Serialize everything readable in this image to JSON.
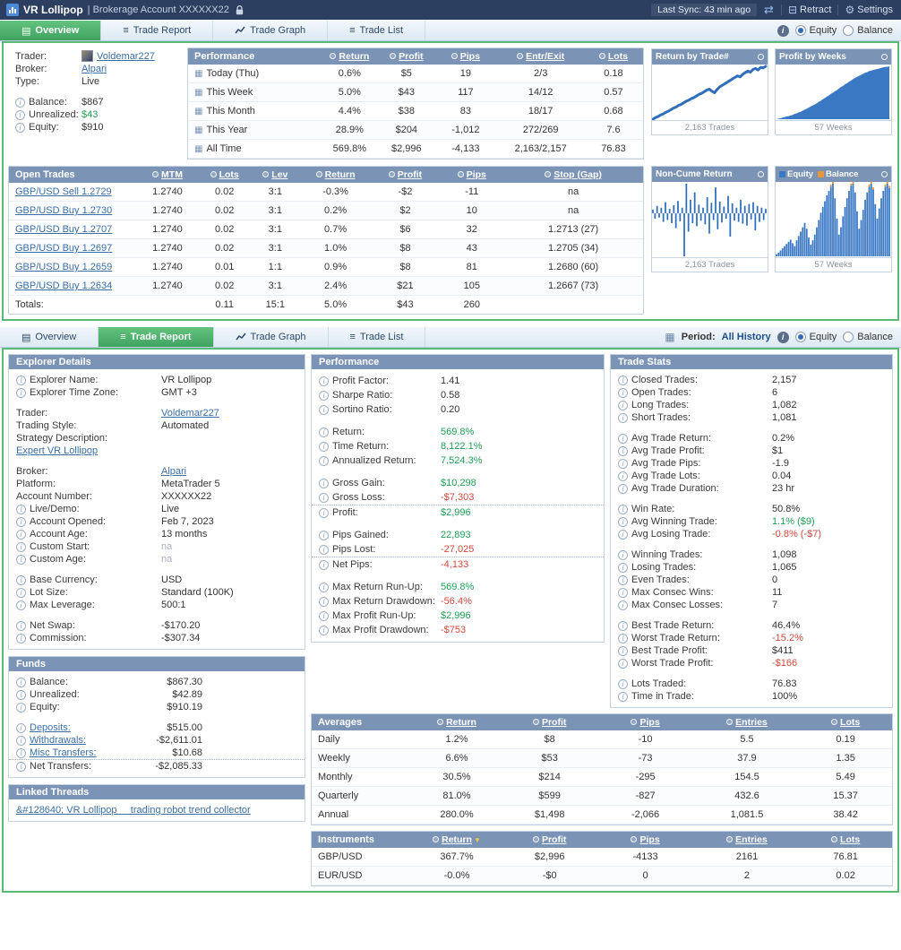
{
  "colors": {
    "pos": "#1f9e55",
    "neg": "#d2493b",
    "link": "#3a6ea5",
    "header": "#7b94b6",
    "accent_green": "#58ba74",
    "chart_blue": "#2f6fba",
    "balance_orange": "#e8963c"
  },
  "icons": {
    "info": "i",
    "help": "i",
    "calendar": "▦",
    "swap": "⇄",
    "retract": "⊟",
    "gear": "⚙",
    "sort_down": "▼",
    "tab_overview": "▤",
    "tab_lines": "≡",
    "chart_dot": ""
  },
  "titlebar": {
    "title": "VR Lollipop",
    "subtitle": "| Brokerage Account XXXXXX22",
    "last_sync": "Last Sync: 43 min ago",
    "retract_label": "Retract",
    "settings_label": "Settings"
  },
  "radio_labels": {
    "equity": "Equity",
    "balance": "Balance"
  },
  "overview_tabs": {
    "tabs": [
      {
        "label": "Overview",
        "icon": "overview",
        "active": true
      },
      {
        "label": "Trade Report",
        "icon": "report",
        "active": false
      },
      {
        "label": "Trade Graph",
        "icon": "graph",
        "active": false
      },
      {
        "label": "Trade List",
        "icon": "list",
        "active": false
      }
    ]
  },
  "report_tabs": {
    "tabs": [
      {
        "label": "Overview",
        "icon": "overview",
        "active": false
      },
      {
        "label": "Trade Report",
        "icon": "report",
        "active": true
      },
      {
        "label": "Trade Graph",
        "icon": "graph",
        "active": false
      },
      {
        "label": "Trade List",
        "icon": "list",
        "active": false
      }
    ],
    "period_label": "Period:",
    "period_value": "All History"
  },
  "trader_panel": {
    "rows": [
      {
        "label": "Trader:",
        "value": "Voldemar227",
        "link": true,
        "avatar": true
      },
      {
        "label": "Broker:",
        "value": "Alpari",
        "link": true
      },
      {
        "label": "Type:",
        "value": "Live"
      },
      {
        "label": "Balance:",
        "value": "$867",
        "info": true,
        "gap": true
      },
      {
        "label": "Unrealized:",
        "value": "$43",
        "info": true,
        "color": "pos"
      },
      {
        "label": "Equity:",
        "value": "$910",
        "info": true
      }
    ]
  },
  "performance_table": {
    "title": "Performance",
    "headers": [
      "Return",
      "Profit",
      "Pips",
      "Entr/Exit",
      "Lots"
    ],
    "col_types": [
      "posneg",
      "posneg",
      "posneg",
      "plain",
      "plain"
    ],
    "rows": [
      {
        "label": "Today (Thu)",
        "cells": [
          "0.6%",
          "$5",
          "19",
          "2/3",
          "0.18"
        ]
      },
      {
        "label": "This Week",
        "cells": [
          "5.0%",
          "$43",
          "117",
          "14/12",
          "0.57"
        ]
      },
      {
        "label": "This Month",
        "cells": [
          "4.4%",
          "$38",
          "83",
          "18/17",
          "0.68"
        ]
      },
      {
        "label": "This Year",
        "cells": [
          "28.9%",
          "$204",
          "-1,012",
          "272/269",
          "7.6"
        ]
      },
      {
        "label": "All Time",
        "cells": [
          "569.8%",
          "$2,996",
          "-4,133",
          "2,163/2,157",
          "76.83"
        ]
      }
    ]
  },
  "open_trades_table": {
    "title": "Open Trades",
    "headers": [
      "MTM",
      "Lots",
      "Lev",
      "Return",
      "Profit",
      "Pips",
      "Stop (Gap)"
    ],
    "col_types": [
      "plain",
      "plain",
      "plain",
      "posneg",
      "posneg",
      "posneg",
      "stop"
    ],
    "rows": [
      {
        "label": "GBP/USD Sell 1.2729",
        "link": true,
        "cells": [
          "1.2740",
          "0.02",
          "3:1",
          "-0.3%",
          "-$2",
          "-11",
          "na"
        ]
      },
      {
        "label": "GBP/USD Buy 1.2730",
        "link": true,
        "cells": [
          "1.2740",
          "0.02",
          "3:1",
          "0.2%",
          "$2",
          "10",
          "na"
        ]
      },
      {
        "label": "GBP/USD Buy 1.2707",
        "link": true,
        "cells": [
          "1.2740",
          "0.02",
          "3:1",
          "0.7%",
          "$6",
          "32",
          "1.2713 (27)"
        ]
      },
      {
        "label": "GBP/USD Buy 1.2697",
        "link": true,
        "cells": [
          "1.2740",
          "0.02",
          "3:1",
          "1.0%",
          "$8",
          "43",
          "1.2705 (34)"
        ]
      },
      {
        "label": "GBP/USD Buy 1.2659",
        "link": true,
        "cells": [
          "1.2740",
          "0.01",
          "1:1",
          "0.9%",
          "$8",
          "81",
          "1.2680 (60)"
        ]
      },
      {
        "label": "GBP/USD Buy 1.2634",
        "link": true,
        "cells": [
          "1.2740",
          "0.02",
          "3:1",
          "2.4%",
          "$21",
          "105",
          "1.2667 (73)"
        ]
      }
    ],
    "totals": {
      "label": "Totals:",
      "cells": [
        "",
        "0.11",
        "15:1",
        "5.0%",
        "$43",
        "260",
        ""
      ]
    }
  },
  "charts": [
    {
      "title": "Return by Trade#",
      "caption": "2,163 Trades",
      "type": "line",
      "color": "#2f6fba",
      "values": [
        0,
        3,
        5,
        8,
        10,
        13,
        15,
        18,
        21,
        23,
        26,
        28,
        31,
        34,
        36,
        39,
        41,
        44,
        47,
        49,
        52,
        55,
        57,
        53,
        50,
        56,
        61,
        64,
        67,
        70,
        73,
        76,
        79,
        82,
        80,
        85,
        88,
        91,
        89,
        94,
        96,
        93,
        98,
        97,
        100
      ]
    },
    {
      "title": "Profit by Weeks",
      "caption": "57 Weeks",
      "type": "area",
      "color": "#3a78c4",
      "values": [
        0,
        1,
        2,
        3,
        4,
        5,
        6,
        7,
        8,
        10,
        11,
        13,
        14,
        16,
        18,
        20,
        22,
        24,
        26,
        28,
        30,
        33,
        35,
        38,
        40,
        43,
        45,
        48,
        50,
        53,
        55,
        58,
        61,
        63,
        66,
        68,
        71,
        73,
        76,
        78,
        80,
        82,
        84,
        86,
        88,
        89,
        91,
        92,
        93,
        94,
        95,
        96,
        97,
        98,
        99,
        99,
        100
      ]
    },
    {
      "title": "Non-Cume Return",
      "caption": "2,163 Trades",
      "type": "midbars",
      "color": "#2f6fba",
      "values": [
        6,
        -9,
        12,
        -7,
        9,
        -14,
        18,
        -11,
        7,
        -16,
        13,
        -24,
        20,
        -13,
        9,
        -70,
        48,
        -30,
        22,
        -16,
        34,
        -21,
        14,
        -12,
        9,
        -18,
        26,
        -33,
        17,
        -11,
        42,
        -26,
        19,
        -15,
        11,
        -9,
        28,
        -38,
        16,
        -12,
        9,
        -14,
        22,
        -17,
        12,
        -20,
        15,
        -10,
        18,
        -28,
        12,
        -14,
        9,
        -11,
        7
      ]
    },
    {
      "legend": [
        {
          "label": "Equity",
          "color": "#3a78c4"
        },
        {
          "label": "Balance",
          "color": "#e8963c"
        }
      ],
      "caption": "57 Weeks",
      "type": "bars",
      "color": "#3a78c4",
      "overlay_color": "#e8963c",
      "overlay_min": 92,
      "values": [
        3,
        5,
        8,
        11,
        14,
        17,
        20,
        23,
        18,
        14,
        22,
        28,
        34,
        40,
        46,
        38,
        26,
        16,
        22,
        30,
        40,
        50,
        60,
        68,
        76,
        84,
        90,
        96,
        100,
        80,
        52,
        30,
        40,
        55,
        68,
        80,
        90,
        97,
        100,
        88,
        62,
        38,
        50,
        64,
        78,
        88,
        96,
        100,
        92,
        72,
        52,
        66,
        80,
        90,
        96,
        100,
        94
      ]
    }
  ],
  "explorer_details": {
    "title": "Explorer Details",
    "rows": [
      {
        "label": "Explorer Name:",
        "value": "VR Lollipop",
        "info": true
      },
      {
        "label": "Explorer Time Zone:",
        "value": "GMT +3",
        "info": true
      },
      {
        "label": "Trader:",
        "value": "Voldemar227",
        "link": true,
        "gap": true
      },
      {
        "label": "Trading Style:",
        "value": "Automated"
      },
      {
        "label": "Strategy Description:",
        "value": ""
      },
      {
        "label": "Expert VR Lollipop",
        "value": "",
        "label_link": true
      },
      {
        "label": "Broker:",
        "value": "Alpari",
        "link": true,
        "gap": true
      },
      {
        "label": "Platform:",
        "value": "MetaTrader 5"
      },
      {
        "label": "Account Number:",
        "value": "XXXXXX22"
      },
      {
        "label": "Live/Demo:",
        "value": "Live",
        "info": true
      },
      {
        "label": "Account Opened:",
        "value": "Feb 7, 2023",
        "info": true
      },
      {
        "label": "Account Age:",
        "value": "13 months",
        "info": true
      },
      {
        "label": "Custom Start:",
        "value": "na",
        "info": true,
        "muted": true
      },
      {
        "label": "Custom Age:",
        "value": "na",
        "info": true,
        "muted": true
      },
      {
        "label": "Base Currency:",
        "value": "USD",
        "info": true,
        "gap": true
      },
      {
        "label": "Lot Size:",
        "value": "Standard (100K)",
        "info": true
      },
      {
        "label": "Max Leverage:",
        "value": "500:1",
        "info": true
      },
      {
        "label": "Net Swap:",
        "value": "-$170.20",
        "info": true,
        "gap": true
      },
      {
        "label": "Commission:",
        "value": "-$307.34",
        "info": true
      }
    ]
  },
  "performance_panel": {
    "title": "Performance",
    "rows": [
      {
        "label": "Profit Factor:",
        "value": "1.41",
        "info": true
      },
      {
        "label": "Sharpe Ratio:",
        "value": "0.58",
        "info": true
      },
      {
        "label": "Sortino Ratio:",
        "value": "0.20",
        "info": true
      },
      {
        "label": "Return:",
        "value": "569.8%",
        "info": true,
        "gap": true,
        "color": "pos"
      },
      {
        "label": "Time Return:",
        "value": "8,122.1%",
        "info": true,
        "color": "pos"
      },
      {
        "label": "Annualized Return:",
        "value": "7,524.3%",
        "info": true,
        "color": "pos"
      },
      {
        "label": "Gross Gain:",
        "value": "$10,298",
        "info": true,
        "gap": true,
        "color": "pos"
      },
      {
        "label": "Gross Loss:",
        "value": "-$7,303",
        "info": true,
        "color": "neg",
        "rule": true
      },
      {
        "label": "Profit:",
        "value": "$2,996",
        "info": true,
        "color": "pos"
      },
      {
        "label": "Pips Gained:",
        "value": "22,893",
        "info": true,
        "gap": true,
        "color": "pos"
      },
      {
        "label": "Pips Lost:",
        "value": "-27,025",
        "info": true,
        "color": "neg",
        "rule": true
      },
      {
        "label": "Net Pips:",
        "value": "-4,133",
        "info": true,
        "color": "neg"
      },
      {
        "label": "Max Return Run-Up:",
        "value": "569.8%",
        "info": true,
        "gap": true,
        "color": "pos"
      },
      {
        "label": "Max Return Drawdown:",
        "value": "-56.4%",
        "info": true,
        "color": "neg"
      },
      {
        "label": "Max Profit Run-Up:",
        "value": "$2,996",
        "info": true,
        "color": "pos"
      },
      {
        "label": "Max Profit Drawdown:",
        "value": "-$753",
        "info": true,
        "color": "neg"
      }
    ]
  },
  "trade_stats": {
    "title": "Trade Stats",
    "rows": [
      {
        "label": "Closed Trades:",
        "value": "2,157",
        "info": true
      },
      {
        "label": "Open Trades:",
        "value": "6",
        "info": true
      },
      {
        "label": "Long Trades:",
        "value": "1,082",
        "info": true
      },
      {
        "label": "Short Trades:",
        "value": "1,081",
        "info": true
      },
      {
        "label": "Avg Trade Return:",
        "value": "0.2%",
        "info": true,
        "gap": true
      },
      {
        "label": "Avg Trade Profit:",
        "value": "$1",
        "info": true
      },
      {
        "label": "Avg Trade Pips:",
        "value": "-1.9",
        "info": true
      },
      {
        "label": "Avg Trade Lots:",
        "value": "0.04",
        "info": true
      },
      {
        "label": "Avg Trade Duration:",
        "value": "23 hr",
        "info": true
      },
      {
        "label": "Win Rate:",
        "value": "50.8%",
        "info": true,
        "gap": true
      },
      {
        "label": "Avg Winning Trade:",
        "value": "1.1% ($9)",
        "info": true,
        "color": "pos"
      },
      {
        "label": "Avg Losing Trade:",
        "value": "-0.8% (-$7)",
        "info": true,
        "color": "neg"
      },
      {
        "label": "Winning Trades:",
        "value": "1,098",
        "info": true,
        "gap": true
      },
      {
        "label": "Losing Trades:",
        "value": "1,065",
        "info": true
      },
      {
        "label": "Even Trades:",
        "value": "0",
        "info": true
      },
      {
        "label": "Max Consec Wins:",
        "value": "11",
        "info": true
      },
      {
        "label": "Max Consec Losses:",
        "value": "7",
        "info": true
      },
      {
        "label": "Best Trade Return:",
        "value": "46.4%",
        "info": true,
        "gap": true
      },
      {
        "label": "Worst Trade Return:",
        "value": "-15.2%",
        "info": true,
        "color": "neg"
      },
      {
        "label": "Best Trade Profit:",
        "value": "$411",
        "info": true
      },
      {
        "label": "Worst Trade Profit:",
        "value": "-$166",
        "info": true,
        "color": "neg"
      },
      {
        "label": "Lots Traded:",
        "value": "76.83",
        "info": true,
        "gap": true
      },
      {
        "label": "Time in Trade:",
        "value": "100%",
        "info": true
      }
    ]
  },
  "funds": {
    "title": "Funds",
    "rows": [
      {
        "label": "Balance:",
        "value": "$867.30",
        "info": true
      },
      {
        "label": "Unrealized:",
        "value": "$42.89",
        "info": true
      },
      {
        "label": "Equity:",
        "value": "$910.19",
        "info": true
      },
      {
        "label": "Deposits:",
        "value": "$515.00",
        "info": true,
        "link": false,
        "label_is_link": true,
        "gap": true
      },
      {
        "label": "Withdrawals:",
        "value": "-$2,611.01",
        "info": true,
        "label_is_link": true
      },
      {
        "label": "Misc Transfers:",
        "value": "$10.68",
        "info": true,
        "label_is_link": true,
        "rule": true
      },
      {
        "label": "Net Transfers:",
        "value": "-$2,085.33",
        "info": true
      }
    ]
  },
  "linked_threads": {
    "title": "Linked Threads",
    "link": "&#128640; VR Lollipop     trading robot trend collector"
  },
  "averages_table": {
    "title": "Averages",
    "headers": [
      "Return",
      "Profit",
      "Pips",
      "Entries",
      "Lots"
    ],
    "col_types": [
      "posneg",
      "posneg",
      "posneg",
      "plain",
      "plain"
    ],
    "rows": [
      {
        "label": "Daily",
        "cells": [
          "1.2%",
          "$8",
          "-10",
          "5.5",
          "0.19"
        ]
      },
      {
        "label": "Weekly",
        "cells": [
          "6.6%",
          "$53",
          "-73",
          "37.9",
          "1.35"
        ]
      },
      {
        "label": "Monthly",
        "cells": [
          "30.5%",
          "$214",
          "-295",
          "154.5",
          "5.49"
        ]
      },
      {
        "label": "Quarterly",
        "cells": [
          "81.0%",
          "$599",
          "-827",
          "432.6",
          "15.37"
        ]
      },
      {
        "label": "Annual",
        "cells": [
          "280.0%",
          "$1,498",
          "-2,066",
          "1,081.5",
          "38.42"
        ]
      }
    ]
  },
  "instruments_table": {
    "title": "Instruments",
    "headers": [
      "Return",
      "Profit",
      "Pips",
      "Entries",
      "Lots"
    ],
    "col_types": [
      "posneg",
      "posneg",
      "posneg",
      "plain",
      "plain"
    ],
    "sort_index": 0,
    "rows": [
      {
        "label": "GBP/USD",
        "cells": [
          "367.7%",
          "$2,996",
          "-4133",
          "2161",
          "76.81"
        ]
      },
      {
        "label": "EUR/USD",
        "cells": [
          "-0.0%",
          "-$0",
          "0",
          "2",
          "0.02"
        ]
      }
    ]
  }
}
